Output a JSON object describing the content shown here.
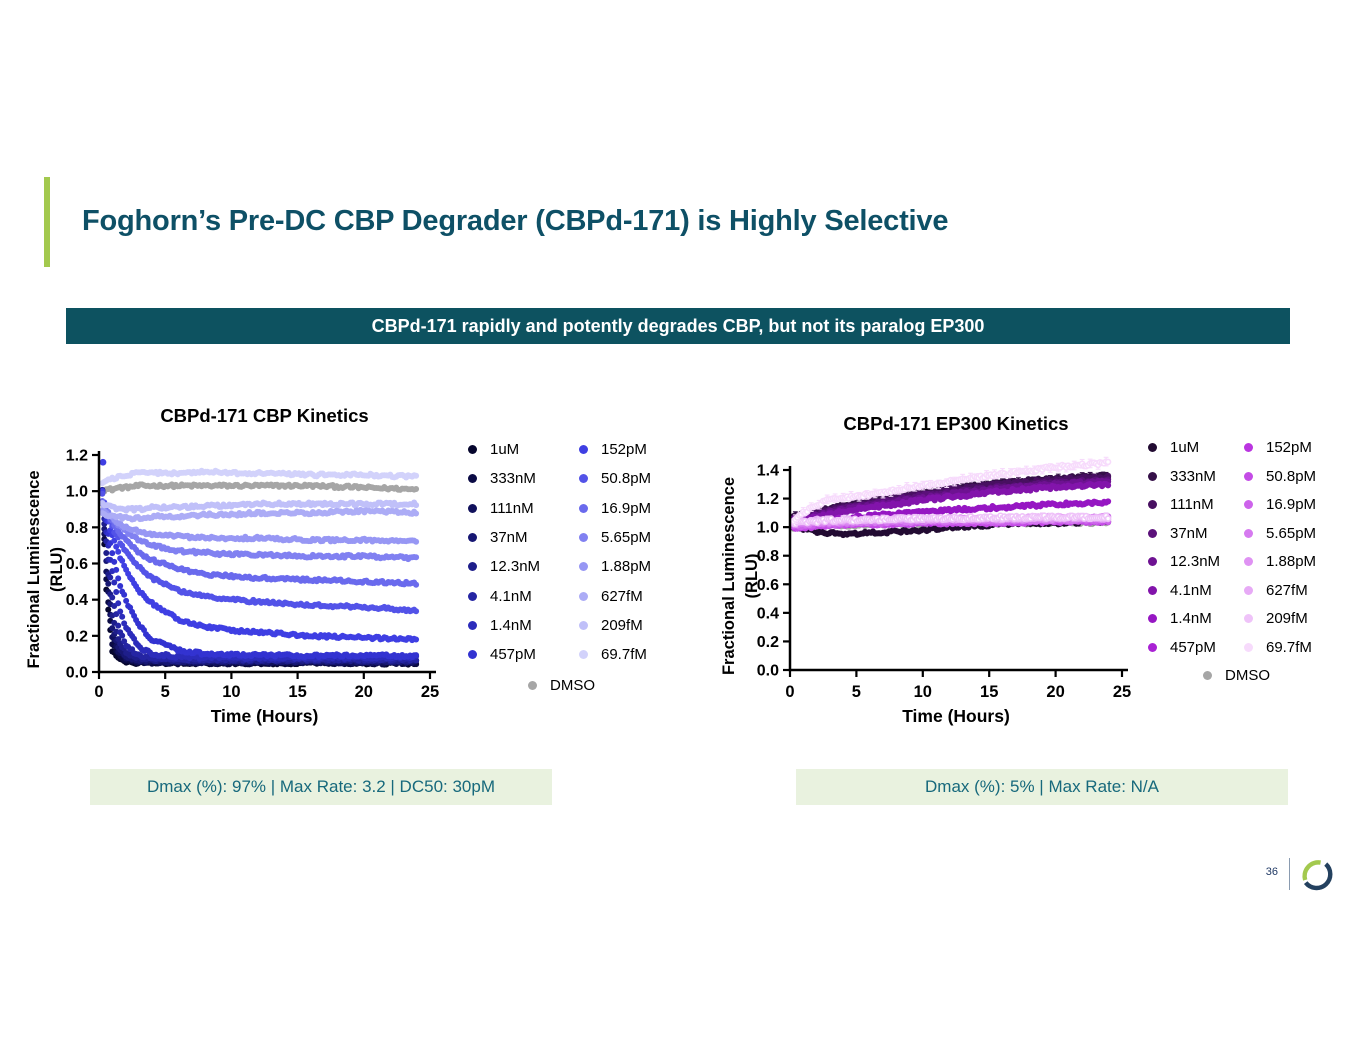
{
  "slide": {
    "title": "Foghorn’s Pre-DC CBP Degrader (CBPd-171) is Highly Selective",
    "banner": "CBPd-171 rapidly and potently degrades CBP, but not its paralog EP300"
  },
  "stats": {
    "left_label": "Dmax (%): 97% | Max Rate: 3.2 | DC50: 30pM",
    "right_label": "Dmax (%): 5% | Max Rate: N/A"
  },
  "footer": {
    "page_number": "36",
    "logo_icon": "foghorn-ring-logo"
  },
  "colors": {
    "title_teal": "#0e5066",
    "banner_bg": "#0d5260",
    "banner_text": "#ffffff",
    "accent_green": "#a3c94e",
    "stats_bg": "#e9f2df",
    "stats_text": "#17697c",
    "axis_black": "#000000",
    "logo_navy": "#24415f",
    "logo_green": "#a3c94e",
    "dmso_gray": "#a6a6a6"
  },
  "chart_data": [
    {
      "type": "scatter",
      "title": "CBPd-171 CBP Kinetics",
      "xlabel": "Time (Hours)",
      "ylabel_line1": "Fractional  Luminescence",
      "ylabel_line2": "(RLU)",
      "xlim": [
        0,
        25
      ],
      "xticks": [
        "0",
        "5",
        "10",
        "15",
        "20",
        "25"
      ],
      "ylim": [
        0,
        1.2
      ],
      "yticks": [
        "0.0",
        "0.2",
        "0.4",
        "0.6",
        "0.8",
        "1.0",
        "1.2"
      ],
      "grid": false,
      "legend_position": "right",
      "t_keypoints": [
        0.25,
        0.5,
        1,
        1.5,
        2,
        3,
        4,
        6,
        8,
        10,
        12,
        16,
        20,
        24
      ],
      "series": [
        {
          "name": "1uM",
          "color": "#06062d",
          "values": [
            1.0,
            0.5,
            0.12,
            0.07,
            0.06,
            0.05,
            0.05,
            0.05,
            0.05,
            0.05,
            0.05,
            0.05,
            0.05,
            0.045
          ]
        },
        {
          "name": "333nM",
          "color": "#0b0b45",
          "values": [
            1.0,
            0.55,
            0.16,
            0.09,
            0.07,
            0.055,
            0.052,
            0.05,
            0.05,
            0.05,
            0.05,
            0.05,
            0.05,
            0.05
          ]
        },
        {
          "name": "111nM",
          "color": "#11115c",
          "values": [
            1.0,
            0.6,
            0.2,
            0.11,
            0.08,
            0.06,
            0.057,
            0.055,
            0.055,
            0.055,
            0.055,
            0.055,
            0.055,
            0.055
          ]
        },
        {
          "name": "37nM",
          "color": "#171773",
          "values": [
            1.0,
            0.65,
            0.25,
            0.13,
            0.09,
            0.065,
            0.062,
            0.06,
            0.06,
            0.06,
            0.06,
            0.06,
            0.06,
            0.06
          ]
        },
        {
          "name": "12.3nM",
          "color": "#1e1e8a",
          "values": [
            1.0,
            0.7,
            0.32,
            0.17,
            0.11,
            0.075,
            0.068,
            0.065,
            0.065,
            0.065,
            0.065,
            0.065,
            0.065,
            0.065
          ]
        },
        {
          "name": "4.1nM",
          "color": "#2525a3",
          "values": [
            1.0,
            0.75,
            0.42,
            0.24,
            0.15,
            0.09,
            0.078,
            0.072,
            0.07,
            0.07,
            0.07,
            0.07,
            0.07,
            0.07
          ]
        },
        {
          "name": "1.4nM",
          "color": "#2c2cbb",
          "values": [
            1.0,
            0.8,
            0.55,
            0.36,
            0.25,
            0.14,
            0.1,
            0.085,
            0.08,
            0.08,
            0.08,
            0.08,
            0.08,
            0.08
          ]
        },
        {
          "name": "457pM",
          "color": "#3333d1",
          "values": [
            1.0,
            0.85,
            0.65,
            0.5,
            0.4,
            0.26,
            0.18,
            0.12,
            0.1,
            0.095,
            0.092,
            0.09,
            0.09,
            0.09
          ]
        },
        {
          "name": "152pM",
          "color": "#3f3fe3",
          "values": [
            1.0,
            0.88,
            0.75,
            0.65,
            0.57,
            0.45,
            0.38,
            0.29,
            0.25,
            0.23,
            0.22,
            0.2,
            0.19,
            0.18
          ]
        },
        {
          "name": "50.8pM",
          "color": "#5353e8",
          "values": [
            0.98,
            0.9,
            0.8,
            0.73,
            0.67,
            0.58,
            0.52,
            0.45,
            0.42,
            0.4,
            0.39,
            0.37,
            0.36,
            0.34
          ]
        },
        {
          "name": "16.9pM",
          "color": "#6a6aed",
          "values": [
            0.95,
            0.9,
            0.83,
            0.78,
            0.73,
            0.66,
            0.62,
            0.57,
            0.54,
            0.53,
            0.52,
            0.51,
            0.5,
            0.49
          ]
        },
        {
          "name": "5.65pM",
          "color": "#8181f1",
          "values": [
            0.93,
            0.9,
            0.85,
            0.81,
            0.78,
            0.73,
            0.7,
            0.67,
            0.66,
            0.65,
            0.65,
            0.64,
            0.64,
            0.63
          ]
        },
        {
          "name": "1.88pM",
          "color": "#9797f4",
          "values": [
            0.9,
            0.88,
            0.85,
            0.82,
            0.8,
            0.78,
            0.76,
            0.75,
            0.74,
            0.74,
            0.74,
            0.73,
            0.73,
            0.72
          ]
        },
        {
          "name": "627fM",
          "color": "#acacf6",
          "values": [
            0.88,
            0.87,
            0.86,
            0.86,
            0.85,
            0.85,
            0.86,
            0.86,
            0.87,
            0.87,
            0.88,
            0.88,
            0.89,
            0.88
          ]
        },
        {
          "name": "209fM",
          "color": "#c0c0f9",
          "values": [
            0.93,
            0.92,
            0.91,
            0.9,
            0.9,
            0.9,
            0.91,
            0.91,
            0.92,
            0.92,
            0.93,
            0.93,
            0.93,
            0.93
          ]
        },
        {
          "name": "69.7fM",
          "color": "#d2d2fb",
          "values": [
            1.05,
            1.06,
            1.07,
            1.08,
            1.09,
            1.1,
            1.1,
            1.1,
            1.11,
            1.1,
            1.1,
            1.09,
            1.09,
            1.08
          ]
        },
        {
          "name": "DMSO",
          "color": "#a6a6a6",
          "control": true,
          "values": [
            1.0,
            1.01,
            1.01,
            1.02,
            1.02,
            1.03,
            1.03,
            1.03,
            1.03,
            1.03,
            1.03,
            1.03,
            1.02,
            1.01
          ]
        }
      ],
      "outliers": [
        {
          "t": 0.3,
          "v": 1.16,
          "series": "152pM"
        }
      ]
    },
    {
      "type": "scatter",
      "title": "CBPd-171 EP300 Kinetics",
      "xlabel": "Time (Hours)",
      "ylabel_line1": "Fractional  Luminescence",
      "ylabel_line2": "(RLU)",
      "xlim": [
        0,
        25
      ],
      "xticks": [
        "0",
        "5",
        "10",
        "15",
        "20",
        "25"
      ],
      "ylim": [
        0,
        1.4
      ],
      "yticks": [
        "0.0",
        "0.2",
        "0.4",
        "0.6",
        "0.8",
        "1.0",
        "1.2",
        "1.4"
      ],
      "grid": false,
      "legend_position": "right",
      "t_keypoints": [
        0.25,
        0.5,
        1,
        1.5,
        2,
        3,
        4,
        6,
        8,
        10,
        12,
        16,
        20,
        24
      ],
      "series": [
        {
          "name": "1uM",
          "color": "#220b32",
          "values": [
            1.0,
            1.0,
            0.99,
            0.98,
            0.97,
            0.96,
            0.95,
            0.96,
            0.97,
            0.98,
            1.0,
            1.02,
            1.03,
            1.04
          ]
        },
        {
          "name": "333nM",
          "color": "#351048",
          "err": 0.025,
          "values": [
            1.07,
            1.08,
            1.09,
            1.1,
            1.11,
            1.13,
            1.15,
            1.18,
            1.21,
            1.24,
            1.27,
            1.31,
            1.34,
            1.36
          ]
        },
        {
          "name": "111nM",
          "color": "#481061",
          "values": [
            1.06,
            1.07,
            1.08,
            1.09,
            1.1,
            1.12,
            1.14,
            1.17,
            1.2,
            1.23,
            1.26,
            1.3,
            1.33,
            1.35
          ]
        },
        {
          "name": "37nM",
          "color": "#5b117a",
          "values": [
            1.05,
            1.06,
            1.07,
            1.08,
            1.09,
            1.11,
            1.13,
            1.16,
            1.19,
            1.22,
            1.24,
            1.28,
            1.31,
            1.33
          ]
        },
        {
          "name": "12.3nM",
          "color": "#6e1292",
          "values": [
            1.05,
            1.05,
            1.06,
            1.07,
            1.08,
            1.1,
            1.12,
            1.15,
            1.18,
            1.2,
            1.23,
            1.27,
            1.3,
            1.32
          ]
        },
        {
          "name": "4.1nM",
          "color": "#8214ab",
          "values": [
            1.04,
            1.05,
            1.05,
            1.06,
            1.07,
            1.09,
            1.11,
            1.14,
            1.16,
            1.19,
            1.21,
            1.25,
            1.28,
            1.3
          ]
        },
        {
          "name": "1.4nM",
          "color": "#9617c3",
          "values": [
            1.02,
            1.02,
            1.03,
            1.03,
            1.04,
            1.05,
            1.06,
            1.08,
            1.09,
            1.11,
            1.12,
            1.14,
            1.16,
            1.17
          ]
        },
        {
          "name": "457pM",
          "color": "#a922d4",
          "values": [
            1.01,
            1.01,
            1.01,
            1.02,
            1.02,
            1.03,
            1.03,
            1.04,
            1.04,
            1.05,
            1.05,
            1.06,
            1.06,
            1.07
          ]
        },
        {
          "name": "152pM",
          "color": "#ba35e0",
          "values": [
            1.0,
            1.0,
            1.0,
            1.01,
            1.01,
            1.02,
            1.02,
            1.03,
            1.03,
            1.03,
            1.04,
            1.04,
            1.05,
            1.05
          ]
        },
        {
          "name": "50.8pM",
          "color": "#c44ce6",
          "values": [
            1.0,
            1.0,
            1.0,
            1.0,
            1.01,
            1.01,
            1.02,
            1.02,
            1.02,
            1.03,
            1.03,
            1.03,
            1.04,
            1.04
          ]
        },
        {
          "name": "16.9pM",
          "color": "#cd63eb",
          "values": [
            1.01,
            1.01,
            1.01,
            1.02,
            1.02,
            1.02,
            1.03,
            1.03,
            1.03,
            1.04,
            1.04,
            1.04,
            1.05,
            1.05
          ]
        },
        {
          "name": "5.65pM",
          "color": "#d67af0",
          "values": [
            1.02,
            1.02,
            1.02,
            1.02,
            1.03,
            1.03,
            1.03,
            1.04,
            1.04,
            1.04,
            1.05,
            1.05,
            1.05,
            1.06
          ]
        },
        {
          "name": "1.88pM",
          "color": "#df92f3",
          "values": [
            1.03,
            1.03,
            1.03,
            1.03,
            1.04,
            1.04,
            1.04,
            1.05,
            1.05,
            1.05,
            1.06,
            1.06,
            1.06,
            1.07
          ]
        },
        {
          "name": "627fM",
          "color": "#e7aaf6",
          "err": 0.015,
          "values": [
            1.04,
            1.04,
            1.04,
            1.04,
            1.05,
            1.05,
            1.05,
            1.05,
            1.06,
            1.06,
            1.06,
            1.06,
            1.07,
            1.06
          ]
        },
        {
          "name": "209fM",
          "color": "#efc3f9",
          "err": 0.02,
          "open": true,
          "values": [
            1.02,
            1.03,
            1.03,
            1.04,
            1.04,
            1.05,
            1.05,
            1.05,
            1.06,
            1.06,
            1.06,
            1.07,
            1.07,
            1.07
          ]
        },
        {
          "name": "69.7fM",
          "color": "#f7dbfc",
          "err": 0.03,
          "open": true,
          "values": [
            1.05,
            1.07,
            1.1,
            1.13,
            1.16,
            1.19,
            1.2,
            1.23,
            1.26,
            1.29,
            1.32,
            1.37,
            1.42,
            1.45
          ]
        },
        {
          "name": "DMSO",
          "color": "#a6a6a6",
          "control": true,
          "values": [
            1.0,
            1.0,
            1.0,
            1.0,
            1.01,
            1.01,
            1.01,
            1.02,
            1.02,
            1.02,
            1.02,
            1.03,
            1.03,
            1.03
          ]
        }
      ],
      "outliers": []
    }
  ]
}
